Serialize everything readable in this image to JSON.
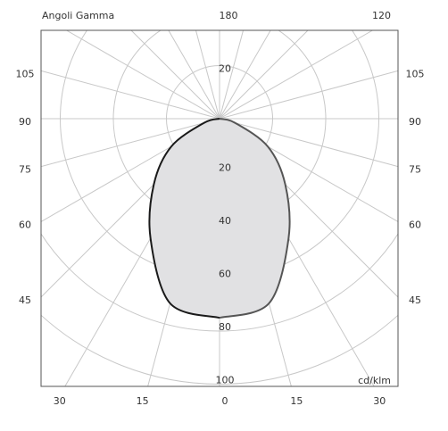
{
  "chart_data": {
    "type": "polar",
    "title": "Angoli Gamma",
    "unit": "cd/klm",
    "angles": [
      0,
      15,
      30,
      45,
      60,
      75,
      90
    ],
    "series": [
      {
        "color": "#1a1a1a",
        "values": [
          75,
          72,
          52,
          35,
          21,
          6,
          0
        ]
      },
      {
        "color": "#555555",
        "values": [
          75,
          72,
          52,
          35,
          21,
          6,
          0
        ]
      }
    ],
    "fill": "#e1e1e3",
    "rlim": [
      0,
      100
    ],
    "rticks": [
      20,
      40,
      60,
      80,
      100
    ],
    "left_ticks": [
      45,
      60,
      75,
      90,
      105
    ],
    "right_ticks": [
      45,
      60,
      75,
      90,
      105
    ],
    "bottom_ticks": [
      30,
      15,
      0,
      15,
      30
    ],
    "top_ticks": [
      180,
      120
    ]
  }
}
